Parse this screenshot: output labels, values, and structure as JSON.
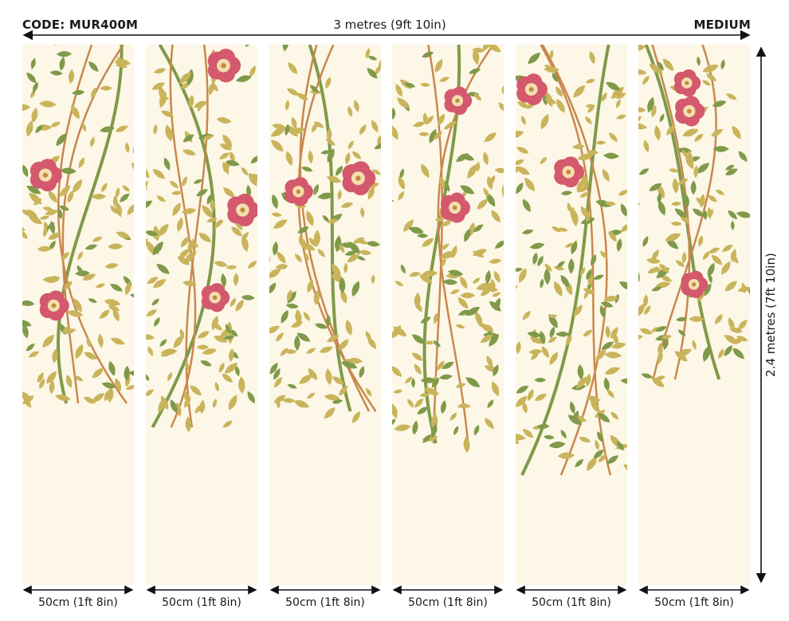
{
  "header": {
    "code": "CODE: MUR400M",
    "total_width": "3 metres (9ft 10in)",
    "size_name": "MEDIUM"
  },
  "dimension": {
    "height": "2.4 metres (7ft 10in)"
  },
  "panels": [
    {
      "width_label": "50cm (1ft 8in)"
    },
    {
      "width_label": "50cm (1ft 8in)"
    },
    {
      "width_label": "50cm (1ft 8in)"
    },
    {
      "width_label": "50cm (1ft 8in)"
    },
    {
      "width_label": "50cm (1ft 8in)"
    },
    {
      "width_label": "50cm (1ft 8in)"
    }
  ],
  "colors": {
    "background": "#fcf7e6",
    "leaf_olive": "#c9b45c",
    "leaf_green": "#7f9a4a",
    "stem": "#c9874e",
    "flower": "#d4596d",
    "flower_center": "#f3dfae",
    "arrow": "#111111"
  }
}
